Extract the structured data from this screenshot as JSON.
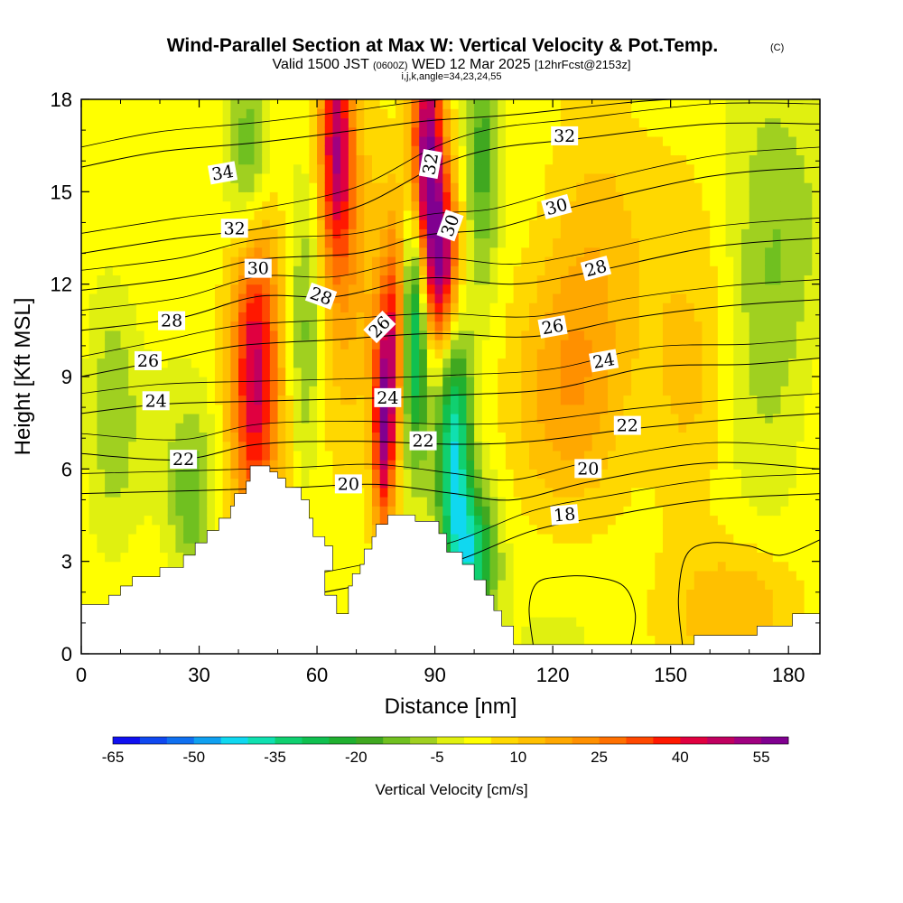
{
  "title": "Wind-Parallel Section at Max W: Vertical Velocity & Pot.Temp.",
  "title_mark": "(C)",
  "subtitle_a": "Valid 1500 JST",
  "subtitle_b": "(0600Z)",
  "subtitle_c": "WED 12 Mar 2025",
  "subtitle_d": "[12hrFcst@2153z]",
  "subtitle_line2": "i,j,k,angle=34,23,24,55",
  "chart_data": {
    "type": "heatmap",
    "xlabel": "Distance [nm]",
    "ylabel": "Height [Kft MSL]",
    "xlim": [
      0,
      188
    ],
    "ylim": [
      0,
      18
    ],
    "x_ticks": [
      0,
      30,
      60,
      90,
      120,
      150,
      180
    ],
    "y_ticks": [
      0,
      3,
      6,
      9,
      12,
      15,
      18
    ],
    "colorbar": {
      "label": "Vertical Velocity [cm/s]",
      "tick_values": [
        -65,
        -50,
        -35,
        -20,
        -5,
        10,
        25,
        40,
        55
      ],
      "bins": [
        -65,
        -60,
        -55,
        -50,
        -45,
        -40,
        -35,
        -30,
        -25,
        -20,
        -15,
        -10,
        -5,
        0,
        5,
        10,
        15,
        20,
        25,
        30,
        35,
        40,
        45,
        50,
        55,
        60
      ],
      "colors": [
        "#1010f0",
        "#1048f0",
        "#1070f0",
        "#10a0f0",
        "#10d8f0",
        "#10e0b0",
        "#10d070",
        "#10c050",
        "#20b030",
        "#40a820",
        "#70c020",
        "#a0d020",
        "#e0f010",
        "#ffff00",
        "#ffd800",
        "#ffc000",
        "#ffa800",
        "#ff9000",
        "#ff7000",
        "#ff4800",
        "#ff1800",
        "#e00040",
        "#c00060",
        "#a00080",
        "#800090"
      ]
    },
    "terrain": [
      [
        0,
        1.6
      ],
      [
        7,
        1.6
      ],
      [
        7,
        1.9
      ],
      [
        10,
        1.9
      ],
      [
        10,
        2.2
      ],
      [
        13,
        2.2
      ],
      [
        13,
        2.5
      ],
      [
        20,
        2.5
      ],
      [
        20,
        2.8
      ],
      [
        26,
        2.8
      ],
      [
        26,
        3.2
      ],
      [
        29,
        3.2
      ],
      [
        29,
        3.6
      ],
      [
        32,
        3.6
      ],
      [
        32,
        4
      ],
      [
        35,
        4
      ],
      [
        35,
        4.4
      ],
      [
        38,
        4.4
      ],
      [
        38,
        4.8
      ],
      [
        39,
        4.8
      ],
      [
        39,
        5.2
      ],
      [
        42,
        5.2
      ],
      [
        42,
        5.6
      ],
      [
        43,
        5.6
      ],
      [
        43,
        6.1
      ],
      [
        48,
        6.1
      ],
      [
        48,
        5.9
      ],
      [
        50,
        5.9
      ],
      [
        50,
        5.7
      ],
      [
        52,
        5.7
      ],
      [
        52,
        5.4
      ],
      [
        56,
        5.4
      ],
      [
        56,
        5
      ],
      [
        58,
        5
      ],
      [
        58,
        4.4
      ],
      [
        59,
        4.4
      ],
      [
        59,
        3.8
      ],
      [
        62,
        3.8
      ],
      [
        62,
        3.5
      ],
      [
        64,
        3.5
      ],
      [
        64,
        2.7
      ],
      [
        62,
        2.7
      ],
      [
        62,
        1.9
      ],
      [
        65,
        1.9
      ],
      [
        65,
        1.3
      ],
      [
        68,
        1.3
      ],
      [
        68,
        2.2
      ],
      [
        69,
        2.2
      ],
      [
        69,
        2.6
      ],
      [
        71,
        2.6
      ],
      [
        71,
        2.9
      ],
      [
        72,
        2.9
      ],
      [
        72,
        3.4
      ],
      [
        74,
        3.4
      ],
      [
        74,
        3.8
      ],
      [
        75,
        3.8
      ],
      [
        75,
        4.2
      ],
      [
        78,
        4.2
      ],
      [
        78,
        4.5
      ],
      [
        85,
        4.5
      ],
      [
        85,
        4.3
      ],
      [
        91,
        4.3
      ],
      [
        91,
        3.9
      ],
      [
        93,
        3.9
      ],
      [
        93,
        3.3
      ],
      [
        97,
        3.3
      ],
      [
        97,
        2.9
      ],
      [
        100,
        2.9
      ],
      [
        100,
        2.4
      ],
      [
        103,
        2.4
      ],
      [
        103,
        1.9
      ],
      [
        105,
        1.9
      ],
      [
        105,
        1.4
      ],
      [
        107,
        1.4
      ],
      [
        107,
        0.9
      ],
      [
        110,
        0.9
      ],
      [
        110,
        0.3
      ],
      [
        156,
        0.3
      ],
      [
        156,
        0.6
      ],
      [
        172,
        0.6
      ],
      [
        172,
        0.9
      ],
      [
        181,
        0.9
      ],
      [
        181,
        1.3
      ],
      [
        188,
        1.3
      ]
    ],
    "velocity_features": [
      {
        "x": 44,
        "y": 8.5,
        "sx": 4,
        "sy": 3.5,
        "w": 32
      },
      {
        "x": 45,
        "y": 12.5,
        "sx": 5,
        "sy": 4,
        "w": 18
      },
      {
        "x": 65,
        "y": 16.5,
        "sx": 3,
        "sy": 3,
        "w": 45
      },
      {
        "x": 77,
        "y": 7.5,
        "sx": 2,
        "sy": 2.5,
        "w": 50
      },
      {
        "x": 80,
        "y": 10.5,
        "sx": 2,
        "sy": 2.5,
        "w": 30
      },
      {
        "x": 88,
        "y": 16,
        "sx": 3,
        "sy": 3,
        "w": 55
      },
      {
        "x": 92,
        "y": 12.5,
        "sx": 3,
        "sy": 2,
        "w": 42
      },
      {
        "x": 85,
        "y": 11,
        "sx": 2.5,
        "sy": 3,
        "w": -40
      },
      {
        "x": 95,
        "y": 6.5,
        "sx": 3,
        "sy": 3,
        "w": -40
      },
      {
        "x": 100,
        "y": 3.2,
        "sx": 4,
        "sy": 1.5,
        "w": -35
      },
      {
        "x": 43,
        "y": 16,
        "sx": 4,
        "sy": 2.5,
        "w": -25
      },
      {
        "x": 57,
        "y": 10,
        "sx": 3,
        "sy": 3,
        "w": -15
      },
      {
        "x": 102,
        "y": 16,
        "sx": 3,
        "sy": 3,
        "w": -20
      },
      {
        "x": 28,
        "y": 5,
        "sx": 4,
        "sy": 2,
        "w": -15
      },
      {
        "x": 175,
        "y": 12,
        "sx": 8,
        "sy": 5,
        "w": -12
      },
      {
        "x": 125,
        "y": 9,
        "sx": 10,
        "sy": 3,
        "w": 15
      },
      {
        "x": 155,
        "y": 8.5,
        "sx": 8,
        "sy": 3,
        "w": 12
      },
      {
        "x": 130,
        "y": 14,
        "sx": 10,
        "sy": 3,
        "w": 10
      },
      {
        "x": 170,
        "y": 1.5,
        "sx": 12,
        "sy": 1.5,
        "w": 12
      },
      {
        "x": 70,
        "y": 12,
        "sx": 6,
        "sy": 4,
        "w": 12
      },
      {
        "x": 8,
        "y": 8,
        "sx": 4,
        "sy": 3,
        "w": -10
      }
    ],
    "theta_contours": [
      {
        "label": "18",
        "points": [
          [
            10,
            1.5
          ],
          [
            40,
            1.6
          ],
          [
            70,
            2.2
          ],
          [
            95,
            3
          ],
          [
            115,
            4
          ],
          [
            135,
            4.5
          ],
          [
            160,
            5
          ],
          [
            188,
            5.2
          ]
        ]
      },
      {
        "label": "20",
        "points": [
          [
            0,
            5.2
          ],
          [
            30,
            5.3
          ],
          [
            55,
            5.4
          ],
          [
            75,
            5.5
          ],
          [
            95,
            5.2
          ],
          [
            110,
            5
          ],
          [
            130,
            5.6
          ],
          [
            160,
            6.2
          ],
          [
            188,
            6
          ]
        ]
      },
      {
        "label": "22",
        "points": [
          [
            0,
            6.5
          ],
          [
            25,
            6.3
          ],
          [
            45,
            6.8
          ],
          [
            70,
            6.9
          ],
          [
            95,
            6.8
          ],
          [
            115,
            6.9
          ],
          [
            140,
            7.3
          ],
          [
            165,
            7.6
          ],
          [
            188,
            7.8
          ]
        ]
      },
      {
        "label": "24",
        "points": [
          [
            0,
            7.8
          ],
          [
            20,
            8.1
          ],
          [
            45,
            8.2
          ],
          [
            75,
            8.3
          ],
          [
            95,
            8.4
          ],
          [
            120,
            8.6
          ],
          [
            145,
            9.3
          ],
          [
            170,
            9.4
          ],
          [
            188,
            9.6
          ]
        ]
      },
      {
        "label": "26",
        "points": [
          [
            0,
            9
          ],
          [
            20,
            9.5
          ],
          [
            40,
            10
          ],
          [
            65,
            10.2
          ],
          [
            90,
            10.4
          ],
          [
            115,
            10.3
          ],
          [
            140,
            10.9
          ],
          [
            165,
            11.3
          ],
          [
            188,
            11.5
          ]
        ]
      },
      {
        "label": "28",
        "points": [
          [
            0,
            10.5
          ],
          [
            25,
            10.9
          ],
          [
            45,
            11.6
          ],
          [
            65,
            11.6
          ],
          [
            88,
            12.2
          ],
          [
            110,
            12
          ],
          [
            130,
            12.4
          ],
          [
            160,
            13.2
          ],
          [
            188,
            13.5
          ]
        ]
      },
      {
        "label": "30",
        "points": [
          [
            0,
            11.8
          ],
          [
            25,
            12.2
          ],
          [
            45,
            12.8
          ],
          [
            70,
            13
          ],
          [
            88,
            13.6
          ],
          [
            105,
            13.8
          ],
          [
            125,
            14.5
          ],
          [
            160,
            15.5
          ],
          [
            188,
            15.8
          ]
        ]
      },
      {
        "label": "32",
        "points": [
          [
            0,
            13
          ],
          [
            25,
            13.5
          ],
          [
            45,
            13.8
          ],
          [
            70,
            14.5
          ],
          [
            90,
            15.8
          ],
          [
            105,
            16.4
          ],
          [
            125,
            16.7
          ],
          [
            160,
            17.2
          ],
          [
            188,
            17.2
          ]
        ]
      },
      {
        "label": "34",
        "points": [
          [
            0,
            15.8
          ],
          [
            20,
            16.3
          ],
          [
            45,
            16.6
          ],
          [
            70,
            17
          ],
          [
            88,
            17.3
          ],
          [
            110,
            17.5
          ],
          [
            150,
            18
          ],
          [
            188,
            18
          ]
        ]
      }
    ],
    "contour_labels": [
      {
        "text": "34",
        "x": 36,
        "y": 15.6,
        "angle": -10
      },
      {
        "text": "32",
        "x": 39,
        "y": 13.8,
        "angle": 0
      },
      {
        "text": "30",
        "x": 45,
        "y": 12.5,
        "angle": 0
      },
      {
        "text": "28",
        "x": 61,
        "y": 11.6,
        "angle": 20
      },
      {
        "text": "28",
        "x": 23,
        "y": 10.8,
        "angle": 0
      },
      {
        "text": "26",
        "x": 17,
        "y": 9.5,
        "angle": 0
      },
      {
        "text": "24",
        "x": 19,
        "y": 8.2,
        "angle": 0
      },
      {
        "text": "22",
        "x": 26,
        "y": 6.3,
        "angle": 0
      },
      {
        "text": "26",
        "x": 76,
        "y": 10.6,
        "angle": -45
      },
      {
        "text": "24",
        "x": 78,
        "y": 8.3,
        "angle": 0
      },
      {
        "text": "22",
        "x": 87,
        "y": 6.9,
        "angle": 0
      },
      {
        "text": "20",
        "x": 68,
        "y": 5.5,
        "angle": 0
      },
      {
        "text": "32",
        "x": 89,
        "y": 15.9,
        "angle": -80
      },
      {
        "text": "30",
        "x": 94,
        "y": 13.9,
        "angle": -70
      },
      {
        "text": "32",
        "x": 123,
        "y": 16.8,
        "angle": 0
      },
      {
        "text": "30",
        "x": 121,
        "y": 14.5,
        "angle": -15
      },
      {
        "text": "28",
        "x": 131,
        "y": 12.5,
        "angle": -15
      },
      {
        "text": "26",
        "x": 120,
        "y": 10.6,
        "angle": -10
      },
      {
        "text": "24",
        "x": 133,
        "y": 9.5,
        "angle": -10
      },
      {
        "text": "22",
        "x": 139,
        "y": 7.4,
        "angle": 0
      },
      {
        "text": "20",
        "x": 129,
        "y": 6,
        "angle": 0
      },
      {
        "text": "18",
        "x": 123,
        "y": 4.5,
        "angle": -5
      }
    ],
    "w_contours": [
      {
        "points": [
          [
            115,
            0.3
          ],
          [
            114,
            1.5
          ],
          [
            116,
            2.3
          ],
          [
            122,
            2.5
          ],
          [
            130,
            2.5
          ],
          [
            138,
            2.2
          ],
          [
            141,
            1.3
          ],
          [
            140,
            0.3
          ]
        ]
      },
      {
        "points": [
          [
            153,
            0.3
          ],
          [
            152,
            1.8
          ],
          [
            154,
            3.2
          ],
          [
            160,
            3.6
          ],
          [
            170,
            3.5
          ],
          [
            178,
            3.2
          ],
          [
            188,
            3.7
          ]
        ]
      }
    ]
  }
}
